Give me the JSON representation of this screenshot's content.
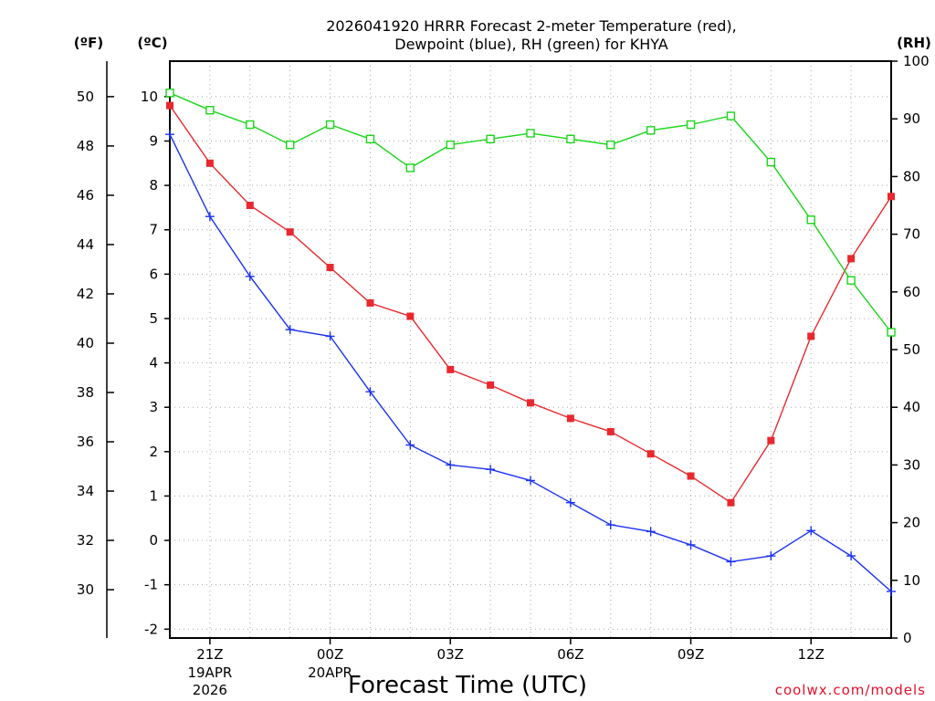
{
  "chart_data": {
    "type": "line",
    "title_line1": "2026041920 HRRR Forecast 2-meter Temperature (red),",
    "title_line2": "Dewpoint (blue), RH (green) for KHYA",
    "xlabel": "Forecast Time (UTC)",
    "credit": "coolwx.com/models",
    "units": {
      "fahrenheit": "(ºF)",
      "celsius": "(ºC)",
      "rh": "(RH)"
    },
    "x_hours": [
      20,
      21,
      22,
      23,
      24,
      25,
      26,
      27,
      28,
      29,
      30,
      31,
      32,
      33,
      34,
      35,
      36,
      37,
      38
    ],
    "xlim": [
      20,
      38
    ],
    "x_ticks": [
      {
        "hour": 21,
        "label": "21Z",
        "date": "19APR",
        "year": "2026"
      },
      {
        "hour": 24,
        "label": "00Z",
        "date": "20APR",
        "year": ""
      },
      {
        "hour": 27,
        "label": "03Z",
        "date": "",
        "year": ""
      },
      {
        "hour": 30,
        "label": "06Z",
        "date": "",
        "year": ""
      },
      {
        "hour": 33,
        "label": "09Z",
        "date": "",
        "year": ""
      },
      {
        "hour": 36,
        "label": "12Z",
        "date": "",
        "year": ""
      }
    ],
    "celsius_axis": {
      "ylim": [
        -2.2,
        10.8
      ],
      "ticks": [
        "-2",
        "-1",
        "0",
        "1",
        "2",
        "3",
        "4",
        "5",
        "6",
        "7",
        "8",
        "9",
        "10"
      ]
    },
    "fahrenheit_axis": {
      "ticks": [
        "30",
        "32",
        "34",
        "36",
        "38",
        "40",
        "42",
        "44",
        "46",
        "48",
        "50"
      ]
    },
    "rh_axis": {
      "ylim": [
        0,
        100
      ],
      "ticks": [
        "0",
        "10",
        "20",
        "30",
        "40",
        "50",
        "60",
        "70",
        "80",
        "90",
        "100"
      ]
    },
    "series": [
      {
        "name": "Temperature",
        "axis": "celsius",
        "color": "#e8282e",
        "marker": "square-filled",
        "values": [
          9.8,
          8.5,
          7.55,
          6.95,
          6.15,
          5.35,
          5.05,
          3.85,
          3.5,
          3.1,
          2.75,
          2.45,
          1.95,
          1.45,
          0.85,
          2.25,
          4.6,
          6.35,
          7.75
        ]
      },
      {
        "name": "Dewpoint",
        "axis": "celsius",
        "color": "#1c32f0",
        "marker": "plus",
        "values": [
          9.15,
          7.3,
          5.95,
          4.75,
          4.6,
          3.35,
          2.15,
          1.7,
          1.6,
          1.35,
          0.85,
          0.35,
          0.2,
          -0.1,
          -0.48,
          -0.35,
          0.22,
          -0.35,
          -1.15
        ]
      },
      {
        "name": "RH",
        "axis": "rh",
        "color": "#1ad61a",
        "marker": "square-open",
        "values": [
          94.5,
          91.5,
          89,
          85.5,
          89,
          86.5,
          81.5,
          85.5,
          86.5,
          87.5,
          86.5,
          85.5,
          88,
          89,
          90.5,
          82.5,
          72.5,
          62,
          53
        ]
      }
    ]
  }
}
